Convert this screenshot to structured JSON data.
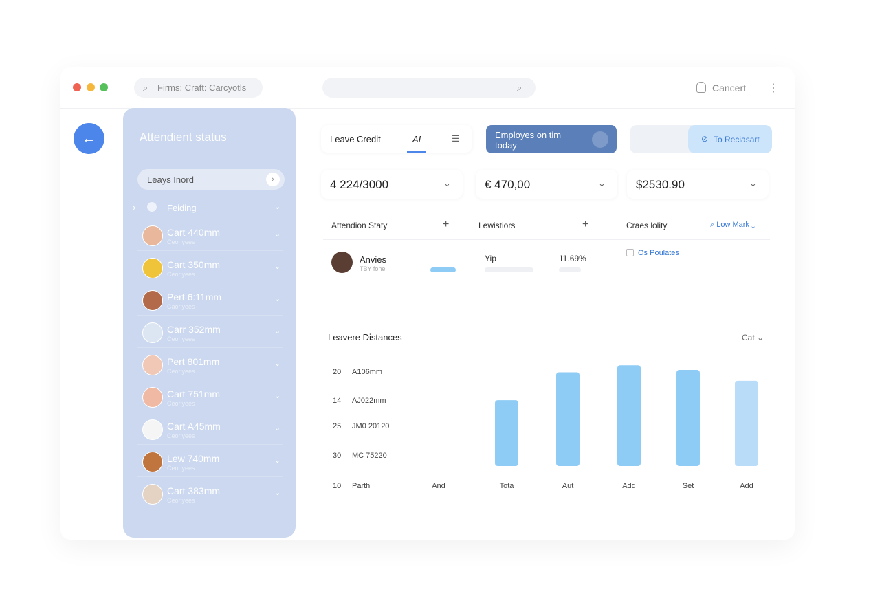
{
  "topbar": {
    "search": "Firms: Craft: Carcyotls",
    "user": "Cancert"
  },
  "sidebar": {
    "title": "Attendient status",
    "search": "Leays Inord",
    "group": "Feiding",
    "people": [
      {
        "name": "Cart 440mm",
        "role": "Ceorlyees"
      },
      {
        "name": "Cart 350mm",
        "role": "Ceorlyees"
      },
      {
        "name": "Pert 6:11mm",
        "role": "Caorlyees"
      },
      {
        "name": "Carr 352mm",
        "role": "Ceorlyees"
      },
      {
        "name": "Pert 801mm",
        "role": "Ceorlyees"
      },
      {
        "name": "Cart 751mm",
        "role": "Ceorlyees"
      },
      {
        "name": "Cart A45mm",
        "role": "Ceorlyees"
      },
      {
        "name": "Lew 740mm",
        "role": "Ceorlyees"
      },
      {
        "name": "Cart 383mm",
        "role": "Ceorlyees"
      }
    ]
  },
  "tabs": [
    "Leave Credit",
    "AI"
  ],
  "banner": "Employes on tim today",
  "action": "To Reciasart",
  "stats": [
    "4 224/3000",
    "€ 470,00",
    "$2530.90"
  ],
  "sections": {
    "a": "Attendion Staty",
    "b": "Lewistiors",
    "c": "Craes lolity",
    "c_link": "Low Mark"
  },
  "row": {
    "name": "Anvies",
    "sub": "TBY fone",
    "b_label": "Yip",
    "b_value": "11.69%",
    "check": "Os Poulates"
  },
  "chart_data": {
    "type": "bar",
    "title": "Leavere Distances",
    "filter": "Cat",
    "rows": [
      {
        "num": "20",
        "code": "A106mm"
      },
      {
        "num": "14",
        "code": "AJ022mm"
      },
      {
        "num": "25",
        "code": "JM0 20120"
      },
      {
        "num": "30",
        "code": "MC 75220"
      },
      {
        "num": "10",
        "code": "Parth"
      }
    ],
    "categories": [
      "And",
      "Tota",
      "Aut",
      "Add",
      "Set",
      "Add"
    ],
    "values": [
      null,
      85,
      121,
      130,
      124,
      110
    ],
    "colors": [
      "#8ecbf5",
      "#8ecbf5",
      "#8ecbf5",
      "#8ecbf5",
      "#8ecbf5",
      "#b9dcf8"
    ],
    "ylim": [
      0,
      140
    ]
  }
}
